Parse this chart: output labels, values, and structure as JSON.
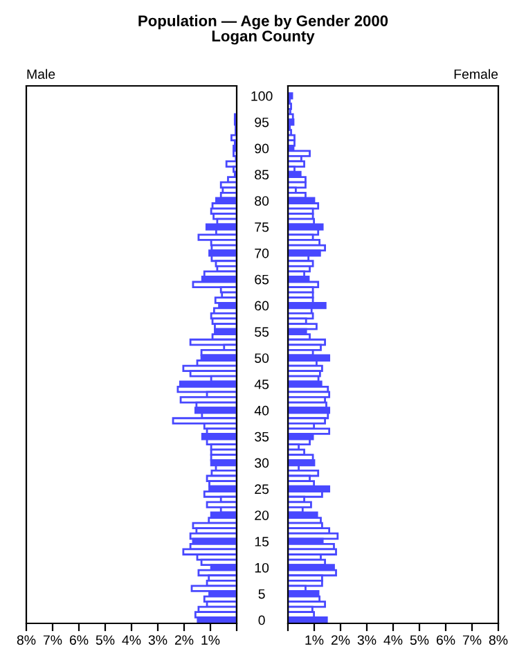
{
  "chart_data": [
    {
      "type": "bar",
      "orientation": "horizontal",
      "title": "Population — Age by Gender 2000",
      "subtitle": "Logan County",
      "annotations": [
        "Male"
      ],
      "categories": [
        "100",
        null,
        null,
        null,
        null,
        "95",
        null,
        null,
        null,
        null,
        "90",
        null,
        null,
        null,
        null,
        "85",
        null,
        null,
        null,
        null,
        "80",
        null,
        null,
        null,
        null,
        "75",
        null,
        null,
        null,
        null,
        "70",
        null,
        null,
        null,
        null,
        "65",
        null,
        null,
        null,
        null,
        "60",
        null,
        null,
        null,
        null,
        "55",
        null,
        null,
        null,
        null,
        "50",
        null,
        null,
        null,
        null,
        "45",
        null,
        null,
        null,
        null,
        "40",
        null,
        null,
        null,
        null,
        "35",
        null,
        null,
        null,
        null,
        "30",
        null,
        null,
        null,
        null,
        "25",
        null,
        null,
        null,
        null,
        "20",
        null,
        null,
        null,
        null,
        "15",
        null,
        null,
        null,
        null,
        "10",
        null,
        null,
        null,
        null,
        "5",
        null,
        null,
        null,
        null,
        "0"
      ],
      "xlim": [
        8,
        0
      ],
      "xticks": [
        {
          "value": 8,
          "label": "8%"
        },
        {
          "value": 7,
          "label": "7%"
        },
        {
          "value": 6,
          "label": "6%"
        },
        {
          "value": 5,
          "label": "5%"
        },
        {
          "value": 4,
          "label": "4%"
        },
        {
          "value": 3,
          "label": "3%"
        },
        {
          "value": 2,
          "label": "2%"
        },
        {
          "value": 1,
          "label": "1%"
        },
        {
          "value": 0,
          "label": null
        }
      ],
      "series": [
        {
          "color": "#4848ff",
          "colors": [
            "#4848ff",
            "#ffffff",
            "#ffffff",
            "#ffffff",
            "#ffffff",
            "#4848ff",
            "#ffffff",
            "#ffffff",
            "#ffffff",
            "#ffffff",
            "#4848ff",
            "#ffffff",
            "#ffffff",
            "#ffffff",
            "#ffffff",
            "#4848ff",
            "#ffffff",
            "#ffffff",
            "#ffffff",
            "#ffffff",
            "#4848ff",
            "#ffffff",
            "#ffffff",
            "#ffffff",
            "#ffffff",
            "#4848ff",
            "#ffffff",
            "#ffffff",
            "#ffffff",
            "#ffffff",
            "#4848ff",
            "#ffffff",
            "#ffffff",
            "#ffffff",
            "#ffffff",
            "#4848ff",
            "#ffffff",
            "#ffffff",
            "#ffffff",
            "#ffffff",
            "#4848ff",
            "#ffffff",
            "#ffffff",
            "#ffffff",
            "#ffffff",
            "#4848ff",
            "#ffffff",
            "#ffffff",
            "#ffffff",
            "#ffffff",
            "#4848ff",
            "#ffffff",
            "#ffffff",
            "#ffffff",
            "#ffffff",
            "#4848ff",
            "#ffffff",
            "#ffffff",
            "#ffffff",
            "#ffffff",
            "#4848ff",
            "#ffffff",
            "#ffffff",
            "#ffffff",
            "#ffffff",
            "#4848ff",
            "#ffffff",
            "#ffffff",
            "#ffffff",
            "#ffffff",
            "#4848ff",
            "#ffffff",
            "#ffffff",
            "#ffffff",
            "#ffffff",
            "#4848ff",
            "#ffffff",
            "#ffffff",
            "#ffffff",
            "#ffffff",
            "#4848ff",
            "#ffffff",
            "#ffffff",
            "#ffffff",
            "#ffffff",
            "#4848ff",
            "#ffffff",
            "#ffffff",
            "#ffffff",
            "#ffffff",
            "#4848ff",
            "#ffffff",
            "#ffffff",
            "#ffffff",
            "#ffffff",
            "#4848ff",
            "#ffffff",
            "#ffffff",
            "#ffffff",
            "#ffffff",
            "#4848ff"
          ],
          "values": [
            null,
            null,
            null,
            null,
            0.07,
            0.07,
            0.04,
            0.04,
            0.2,
            0.07,
            0.12,
            0.12,
            0.03,
            0.39,
            0.12,
            0.07,
            0.33,
            0.6,
            0.53,
            0.6,
            0.78,
            0.92,
            0.97,
            0.88,
            0.74,
            1.15,
            0.78,
            1.45,
            0.97,
            0.95,
            1.04,
            0.95,
            0.79,
            0.74,
            1.23,
            1.31,
            1.66,
            0.6,
            0.56,
            0.81,
            0.67,
            0.86,
            0.97,
            0.92,
            0.83,
            0.83,
            0.92,
            1.76,
            0.48,
            1.34,
            1.34,
            1.5,
            2.03,
            1.76,
            0.97,
            2.15,
            2.24,
            1.13,
            2.13,
            1.53,
            1.57,
            1.32,
            2.42,
            1.23,
            1.13,
            1.31,
            1.13,
            0.97,
            0.97,
            0.97,
            0.97,
            0.79,
            0.95,
            1.13,
            1.04,
            1.04,
            1.23,
            0.6,
            1.13,
            0.6,
            0.97,
            1.06,
            1.66,
            1.53,
            1.76,
            1.66,
            1.76,
            2.03,
            1.5,
            1.34,
            0.97,
            1.45,
            1.06,
            1.13,
            1.71,
            1.04,
            1.23,
            1.13,
            1.45,
            1.57,
            1.48
          ]
        }
      ]
    },
    {
      "type": "bar",
      "orientation": "horizontal",
      "annotations": [
        "Female"
      ],
      "tick_labels": "x",
      "categories": [
        "100",
        null,
        null,
        null,
        null,
        "95",
        null,
        null,
        null,
        null,
        "90",
        null,
        null,
        null,
        null,
        "85",
        null,
        null,
        null,
        null,
        "80",
        null,
        null,
        null,
        null,
        "75",
        null,
        null,
        null,
        null,
        "70",
        null,
        null,
        null,
        null,
        "65",
        null,
        null,
        null,
        null,
        "60",
        null,
        null,
        null,
        null,
        "55",
        null,
        null,
        null,
        null,
        "50",
        null,
        null,
        null,
        null,
        "45",
        null,
        null,
        null,
        null,
        "40",
        null,
        null,
        null,
        null,
        "35",
        null,
        null,
        null,
        null,
        "30",
        null,
        null,
        null,
        null,
        "25",
        null,
        null,
        null,
        null,
        "20",
        null,
        null,
        null,
        null,
        "15",
        null,
        null,
        null,
        null,
        "10",
        null,
        null,
        null,
        null,
        "5",
        null,
        null,
        null,
        null,
        "0"
      ],
      "xlim": [
        0,
        8
      ],
      "xticks": [
        {
          "value": 0,
          "label": null
        },
        {
          "value": 1,
          "label": "1%"
        },
        {
          "value": 2,
          "label": "2%"
        },
        {
          "value": 3,
          "label": "3%"
        },
        {
          "value": 4,
          "label": "4%"
        },
        {
          "value": 5,
          "label": "5%"
        },
        {
          "value": 6,
          "label": "6%"
        },
        {
          "value": 7,
          "label": "7%"
        },
        {
          "value": 8,
          "label": "8%"
        }
      ],
      "series": [
        {
          "color": "#4848ff",
          "colors": [
            "#4848ff",
            "#ffffff",
            "#ffffff",
            "#ffffff",
            "#ffffff",
            "#4848ff",
            "#ffffff",
            "#ffffff",
            "#ffffff",
            "#ffffff",
            "#4848ff",
            "#ffffff",
            "#ffffff",
            "#ffffff",
            "#ffffff",
            "#4848ff",
            "#ffffff",
            "#ffffff",
            "#ffffff",
            "#ffffff",
            "#4848ff",
            "#ffffff",
            "#ffffff",
            "#ffffff",
            "#ffffff",
            "#4848ff",
            "#ffffff",
            "#ffffff",
            "#ffffff",
            "#ffffff",
            "#4848ff",
            "#ffffff",
            "#ffffff",
            "#ffffff",
            "#ffffff",
            "#4848ff",
            "#ffffff",
            "#ffffff",
            "#ffffff",
            "#ffffff",
            "#4848ff",
            "#ffffff",
            "#ffffff",
            "#ffffff",
            "#ffffff",
            "#4848ff",
            "#ffffff",
            "#ffffff",
            "#ffffff",
            "#ffffff",
            "#4848ff",
            "#ffffff",
            "#ffffff",
            "#ffffff",
            "#ffffff",
            "#4848ff",
            "#ffffff",
            "#ffffff",
            "#ffffff",
            "#ffffff",
            "#4848ff",
            "#ffffff",
            "#ffffff",
            "#ffffff",
            "#ffffff",
            "#4848ff",
            "#ffffff",
            "#ffffff",
            "#ffffff",
            "#ffffff",
            "#4848ff",
            "#ffffff",
            "#ffffff",
            "#ffffff",
            "#ffffff",
            "#4848ff",
            "#ffffff",
            "#ffffff",
            "#ffffff",
            "#ffffff",
            "#4848ff",
            "#ffffff",
            "#ffffff",
            "#ffffff",
            "#ffffff",
            "#4848ff",
            "#ffffff",
            "#ffffff",
            "#ffffff",
            "#ffffff",
            "#4848ff",
            "#ffffff",
            "#ffffff",
            "#ffffff",
            "#ffffff",
            "#4848ff",
            "#ffffff",
            "#ffffff",
            "#ffffff",
            "#ffffff",
            "#4848ff"
          ],
          "values": [
            0.16,
            0.07,
            0.12,
            0.09,
            0.19,
            0.21,
            0.07,
            0.12,
            0.25,
            0.25,
            0.21,
            0.83,
            0.51,
            0.62,
            0.25,
            0.48,
            0.67,
            0.67,
            0.3,
            0.67,
            1.0,
            1.15,
            0.95,
            0.95,
            0.99,
            1.32,
            1.15,
            0.95,
            1.2,
            1.41,
            1.22,
            0.78,
            0.95,
            0.83,
            0.62,
            0.79,
            1.15,
            0.95,
            0.95,
            0.95,
            1.43,
            0.9,
            0.95,
            0.69,
            1.09,
            0.69,
            0.83,
            1.41,
            1.25,
            0.95,
            1.57,
            1.09,
            1.3,
            1.22,
            1.16,
            1.27,
            1.52,
            1.57,
            1.41,
            1.46,
            1.57,
            1.52,
            1.41,
            0.99,
            1.57,
            0.95,
            0.83,
            0.41,
            0.62,
            0.95,
            1.0,
            0.41,
            1.15,
            0.83,
            0.99,
            1.57,
            1.3,
            0.62,
            0.88,
            0.56,
            1.11,
            1.25,
            1.3,
            1.57,
            1.89,
            1.32,
            1.75,
            1.83,
            1.25,
            1.41,
            1.75,
            1.83,
            1.3,
            1.3,
            0.67,
            1.16,
            1.2,
            1.41,
            0.93,
            0.99,
            1.48
          ]
        }
      ]
    }
  ]
}
